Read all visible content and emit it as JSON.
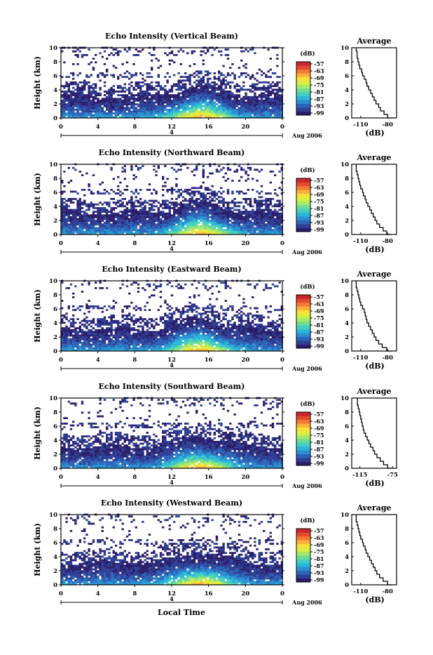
{
  "colors": {
    "scale": [
      "#2a1e6b",
      "#2f3f95",
      "#2c64b8",
      "#2b8fd1",
      "#2bb7d8",
      "#44cfc0",
      "#6fdc96",
      "#a7e86a",
      "#d6ef45",
      "#f7e23a",
      "#fbb03a",
      "#f47a35",
      "#e44a2e",
      "#c8282d"
    ],
    "frame": "#000000"
  },
  "x_label": "Local Time",
  "panels": [
    {
      "title": "Echo Intensity (Vertical Beam)",
      "y_label": "Height (km)",
      "x_ticks": [
        "0",
        "4",
        "8",
        "12",
        "16",
        "20",
        "0"
      ],
      "y_ticks": [
        "0",
        "2",
        "4",
        "6",
        "8",
        "10"
      ],
      "day_label": "4",
      "date_label": "Aug 2006",
      "colorbar": {
        "unit": "(dB)",
        "ticks": [
          "-57",
          "-63",
          "-69",
          "-75",
          "-81",
          "-87",
          "-93",
          "-99"
        ]
      },
      "average": {
        "title": "Average",
        "x_label": "(dB)",
        "x_ticks": [
          "-110",
          "-80"
        ],
        "y_ticks": [
          "0",
          "2",
          "4",
          "6",
          "8",
          "10"
        ]
      }
    },
    {
      "title": "Echo Intensity (Northward Beam)",
      "y_label": "Height (km)",
      "x_ticks": [
        "0",
        "4",
        "8",
        "12",
        "16",
        "20",
        "0"
      ],
      "y_ticks": [
        "0",
        "2",
        "4",
        "6",
        "8",
        "10"
      ],
      "day_label": "4",
      "date_label": "Aug 2006",
      "colorbar": {
        "unit": "(dB)",
        "ticks": [
          "-57",
          "-63",
          "-69",
          "-75",
          "-81",
          "-87",
          "-93",
          "-99"
        ]
      },
      "average": {
        "title": "Average",
        "x_label": "(dB)",
        "x_ticks": [
          "-110",
          "-80"
        ],
        "y_ticks": [
          "0",
          "2",
          "4",
          "6",
          "8",
          "10"
        ]
      }
    },
    {
      "title": "Echo Intensity (Eastward Beam)",
      "y_label": "Height (km)",
      "x_ticks": [
        "0",
        "4",
        "8",
        "12",
        "16",
        "20",
        "0"
      ],
      "y_ticks": [
        "0",
        "2",
        "4",
        "6",
        "8",
        "10"
      ],
      "day_label": "4",
      "date_label": "Aug 2006",
      "colorbar": {
        "unit": "(dB)",
        "ticks": [
          "-57",
          "-63",
          "-69",
          "-75",
          "-81",
          "-87",
          "-93",
          "-99"
        ]
      },
      "average": {
        "title": "Average",
        "x_label": "(dB)",
        "x_ticks": [
          "-110",
          "-80"
        ],
        "y_ticks": [
          "0",
          "2",
          "4",
          "6",
          "8",
          "10"
        ]
      }
    },
    {
      "title": "Echo Intensity (Southward Beam)",
      "y_label": "Height (km)",
      "x_ticks": [
        "0",
        "4",
        "8",
        "12",
        "16",
        "20",
        "0"
      ],
      "y_ticks": [
        "0",
        "2",
        "4",
        "6",
        "8",
        "10"
      ],
      "day_label": "4",
      "date_label": "Aug 2006",
      "colorbar": {
        "unit": "(dB)",
        "ticks": [
          "-57",
          "-63",
          "-69",
          "-75",
          "-81",
          "-87",
          "-93",
          "-99"
        ]
      },
      "average": {
        "title": "Average",
        "x_label": "(dB)",
        "x_ticks": [
          "-115",
          "-75"
        ],
        "y_ticks": [
          "0",
          "2",
          "4",
          "6",
          "8",
          "10"
        ]
      }
    },
    {
      "title": "Echo Intensity (Westward Beam)",
      "y_label": "Height (km)",
      "x_ticks": [
        "0",
        "4",
        "8",
        "12",
        "16",
        "20",
        "0"
      ],
      "y_ticks": [
        "0",
        "2",
        "4",
        "6",
        "8",
        "10"
      ],
      "day_label": "4",
      "date_label": "Aug 2006",
      "colorbar": {
        "unit": "(dB)",
        "ticks": [
          "-57",
          "-63",
          "-69",
          "-75",
          "-81",
          "-87",
          "-93",
          "-99"
        ]
      },
      "average": {
        "title": "Average",
        "x_label": "(dB)",
        "x_ticks": [
          "-110",
          "-80"
        ],
        "y_ticks": [
          "0",
          "2",
          "4",
          "6",
          "8",
          "10"
        ]
      }
    }
  ],
  "chart_data": [
    {
      "type": "heatmap",
      "title": "Echo Intensity (Vertical Beam)",
      "ylabel": "Height (km)",
      "xlabel": "",
      "x_range_hours": [
        0,
        24
      ],
      "y_range_km": [
        0,
        10
      ],
      "color_range_db": [
        -99,
        -57
      ],
      "average_profile": {
        "type": "line",
        "xlim_db": [
          -120,
          -70
        ],
        "height_km": [
          0,
          0.5,
          1,
          1.5,
          2,
          2.5,
          3,
          3.5,
          4,
          4.5,
          5,
          5.5,
          6,
          6.5,
          7,
          7.5,
          8,
          8.5,
          9,
          9.5,
          10
        ],
        "db": [
          -75,
          -80,
          -84,
          -88,
          -90,
          -93,
          -95,
          -97,
          -99,
          -101,
          -103,
          -104,
          -106,
          -108,
          -109,
          -111,
          -112,
          -113,
          -114,
          -114,
          -115
        ]
      }
    },
    {
      "type": "heatmap",
      "title": "Echo Intensity (Northward Beam)",
      "ylabel": "Height (km)",
      "xlabel": "",
      "x_range_hours": [
        0,
        24
      ],
      "y_range_km": [
        0,
        10
      ],
      "color_range_db": [
        -99,
        -57
      ],
      "average_profile": {
        "type": "line",
        "xlim_db": [
          -120,
          -70
        ],
        "height_km": [
          0,
          0.5,
          1,
          1.5,
          2,
          2.5,
          3,
          3.5,
          4,
          4.5,
          5,
          5.5,
          6,
          6.5,
          7,
          7.5,
          8,
          8.5,
          9,
          9.5,
          10
        ],
        "db": [
          -76,
          -81,
          -85,
          -89,
          -92,
          -94,
          -96,
          -98,
          -100,
          -102,
          -104,
          -105,
          -107,
          -108,
          -110,
          -111,
          -112,
          -113,
          -114,
          -115,
          -115
        ]
      }
    },
    {
      "type": "heatmap",
      "title": "Echo Intensity (Eastward Beam)",
      "ylabel": "Height (km)",
      "xlabel": "",
      "x_range_hours": [
        0,
        24
      ],
      "y_range_km": [
        0,
        10
      ],
      "color_range_db": [
        -99,
        -57
      ],
      "average_profile": {
        "type": "line",
        "xlim_db": [
          -120,
          -70
        ],
        "height_km": [
          0,
          0.5,
          1,
          1.5,
          2,
          2.5,
          3,
          3.5,
          4,
          4.5,
          5,
          5.5,
          6,
          6.5,
          7,
          7.5,
          8,
          8.5,
          9,
          9.5,
          10
        ],
        "db": [
          -76,
          -81,
          -86,
          -90,
          -93,
          -95,
          -97,
          -99,
          -101,
          -103,
          -104,
          -105,
          -106,
          -108,
          -110,
          -111,
          -112,
          -113,
          -114,
          -115,
          -115
        ]
      }
    },
    {
      "type": "heatmap",
      "title": "Echo Intensity (Southward Beam)",
      "ylabel": "Height (km)",
      "xlabel": "",
      "x_range_hours": [
        0,
        24
      ],
      "y_range_km": [
        0,
        10
      ],
      "color_range_db": [
        -99,
        -57
      ],
      "average_profile": {
        "type": "line",
        "xlim_db": [
          -125,
          -70
        ],
        "height_km": [
          0,
          0.5,
          1,
          1.5,
          2,
          2.5,
          3,
          3.5,
          4,
          4.5,
          5,
          5.5,
          6,
          6.5,
          7,
          7.5,
          8,
          8.5,
          9,
          9.5,
          10
        ],
        "db": [
          -76,
          -81,
          -86,
          -90,
          -94,
          -97,
          -99,
          -102,
          -104,
          -106,
          -108,
          -110,
          -111,
          -112,
          -113,
          -114,
          -115,
          -116,
          -117,
          -118,
          -118
        ]
      }
    },
    {
      "type": "heatmap",
      "title": "Echo Intensity (Westward Beam)",
      "ylabel": "Height (km)",
      "xlabel": "Local Time",
      "x_range_hours": [
        0,
        24
      ],
      "y_range_km": [
        0,
        10
      ],
      "color_range_db": [
        -99,
        -57
      ],
      "average_profile": {
        "type": "line",
        "xlim_db": [
          -120,
          -70
        ],
        "height_km": [
          0,
          0.5,
          1,
          1.5,
          2,
          2.5,
          3,
          3.5,
          4,
          4.5,
          5,
          5.5,
          6,
          6.5,
          7,
          7.5,
          8,
          8.5,
          9,
          9.5,
          10
        ],
        "db": [
          -75,
          -80,
          -85,
          -89,
          -92,
          -94,
          -96,
          -98,
          -100,
          -102,
          -104,
          -105,
          -107,
          -108,
          -110,
          -111,
          -112,
          -113,
          -114,
          -115,
          -115
        ]
      }
    }
  ]
}
